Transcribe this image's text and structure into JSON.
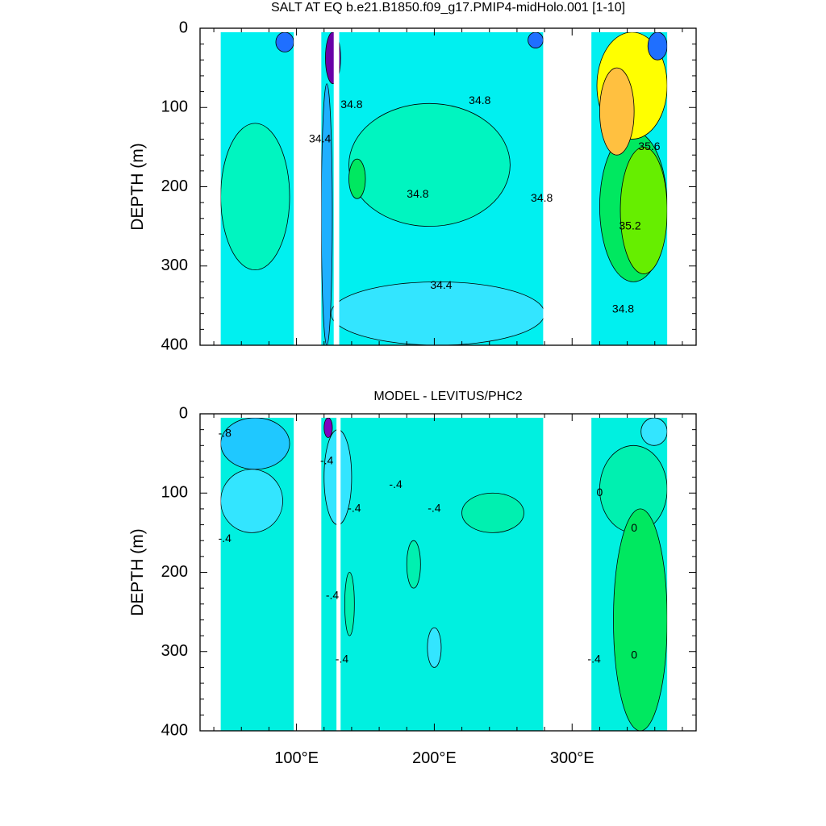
{
  "chart_data": [
    {
      "type": "heatmap",
      "title": "SALT AT EQ b.e21.B1850.f09_g17.PMIP4-midHolo.001 [1-10]",
      "xlabel": "",
      "ylabel": "DEPTH (m)",
      "xlim": [
        30,
        390
      ],
      "ylim": [
        400,
        0
      ],
      "x_ticks": [
        100,
        200,
        300
      ],
      "x_tick_labels": [
        "100°E",
        "200°E",
        "300°E"
      ],
      "y_ticks": [
        0,
        100,
        200,
        300,
        400
      ],
      "y_tick_labels": [
        "0",
        "100",
        "200",
        "300",
        "400"
      ],
      "land_ranges_lon": [
        [
          30,
          45
        ],
        [
          98,
          118
        ],
        [
          127,
          131
        ],
        [
          279,
          314
        ],
        [
          369,
          390
        ]
      ],
      "base_value": 34.6,
      "regions": [
        {
          "value": 34.4,
          "lon": [
            125,
            280
          ],
          "depth": [
            320,
            400
          ]
        },
        {
          "value": 34.8,
          "lon": [
            138,
            255
          ],
          "depth": [
            95,
            250
          ]
        },
        {
          "value": 34.8,
          "lon": [
            45,
            95
          ],
          "depth": [
            120,
            305
          ]
        },
        {
          "value": 35.0,
          "lon": [
            138,
            150
          ],
          "depth": [
            165,
            215
          ]
        },
        {
          "value": 35.0,
          "lon": [
            320,
            369
          ],
          "depth": [
            130,
            320
          ]
        },
        {
          "value": 35.2,
          "lon": [
            335,
            369
          ],
          "depth": [
            150,
            310
          ]
        },
        {
          "value": 35.4,
          "lon": [
            318,
            369
          ],
          "depth": [
            5,
            140
          ]
        },
        {
          "value": 35.6,
          "lon": [
            320,
            345
          ],
          "depth": [
            50,
            160
          ]
        },
        {
          "value": 34.0,
          "lon": [
            85,
            98
          ],
          "depth": [
            5,
            30
          ]
        },
        {
          "value": 33.4,
          "lon": [
            121,
            132
          ],
          "depth": [
            5,
            70
          ]
        },
        {
          "value": 34.0,
          "lon": [
            268,
            279
          ],
          "depth": [
            5,
            25
          ]
        },
        {
          "value": 34.0,
          "lon": [
            355,
            369
          ],
          "depth": [
            5,
            40
          ]
        },
        {
          "value": 34.2,
          "lon": [
            118,
            126
          ],
          "depth": [
            70,
            400
          ]
        }
      ],
      "contour_labels": [
        {
          "text": "34.8",
          "lon": 140,
          "depth": 97
        },
        {
          "text": "34.8",
          "lon": 233,
          "depth": 92
        },
        {
          "text": "34.4",
          "lon": 117,
          "depth": 140
        },
        {
          "text": "34.8",
          "lon": 188,
          "depth": 210
        },
        {
          "text": "34.8",
          "lon": 278,
          "depth": 215
        },
        {
          "text": "35.6",
          "lon": 356,
          "depth": 150
        },
        {
          "text": "35.2",
          "lon": 342,
          "depth": 250
        },
        {
          "text": "34.4",
          "lon": 205,
          "depth": 325
        },
        {
          "text": "34.8",
          "lon": 337,
          "depth": 355
        }
      ]
    },
    {
      "type": "heatmap",
      "title": "MODEL - LEVITUS/PHC2",
      "xlabel": "",
      "ylabel": "DEPTH (m)",
      "xlim": [
        30,
        390
      ],
      "ylim": [
        400,
        0
      ],
      "x_ticks": [
        100,
        200,
        300
      ],
      "x_tick_labels": [
        "100°E",
        "200°E",
        "300°E"
      ],
      "y_ticks": [
        0,
        100,
        200,
        300,
        400
      ],
      "y_tick_labels": [
        "0",
        "100",
        "200",
        "300",
        "400"
      ],
      "land_ranges_lon": [
        [
          30,
          45
        ],
        [
          98,
          118
        ],
        [
          129,
          132
        ],
        [
          279,
          314
        ],
        [
          369,
          390
        ]
      ],
      "base_value": -0.2,
      "regions": [
        {
          "value": -0.6,
          "lon": [
            45,
            95
          ],
          "depth": [
            5,
            70
          ]
        },
        {
          "value": -0.4,
          "lon": [
            45,
            90
          ],
          "depth": [
            70,
            150
          ]
        },
        {
          "value": -0.4,
          "lon": [
            120,
            140
          ],
          "depth": [
            20,
            140
          ]
        },
        {
          "value": 0.0,
          "lon": [
            220,
            265
          ],
          "depth": [
            100,
            150
          ]
        },
        {
          "value": 0.0,
          "lon": [
            180,
            190
          ],
          "depth": [
            160,
            220
          ]
        },
        {
          "value": 0.0,
          "lon": [
            135,
            142
          ],
          "depth": [
            200,
            280
          ]
        },
        {
          "value": -0.4,
          "lon": [
            195,
            205
          ],
          "depth": [
            270,
            320
          ]
        },
        {
          "value": 0.0,
          "lon": [
            320,
            369
          ],
          "depth": [
            40,
            150
          ]
        },
        {
          "value": 0.2,
          "lon": [
            330,
            369
          ],
          "depth": [
            120,
            400
          ]
        },
        {
          "value": -0.4,
          "lon": [
            350,
            369
          ],
          "depth": [
            5,
            40
          ]
        },
        {
          "value": -1.0,
          "lon": [
            120,
            126
          ],
          "depth": [
            5,
            30
          ]
        }
      ],
      "contour_labels": [
        {
          "text": "-.8",
          "lon": 48,
          "depth": 25
        },
        {
          "text": "-.4",
          "lon": 48,
          "depth": 158
        },
        {
          "text": "-.4",
          "lon": 122,
          "depth": 60
        },
        {
          "text": "-.4",
          "lon": 142,
          "depth": 120
        },
        {
          "text": "-.4",
          "lon": 172,
          "depth": 90
        },
        {
          "text": "-.4",
          "lon": 200,
          "depth": 120
        },
        {
          "text": "-.4",
          "lon": 126,
          "depth": 230
        },
        {
          "text": "-.4",
          "lon": 133,
          "depth": 310
        },
        {
          "text": "0",
          "lon": 320,
          "depth": 100
        },
        {
          "text": "0",
          "lon": 345,
          "depth": 145
        },
        {
          "text": "0",
          "lon": 345,
          "depth": 305
        },
        {
          "text": "-.4",
          "lon": 316,
          "depth": 310
        }
      ]
    }
  ]
}
